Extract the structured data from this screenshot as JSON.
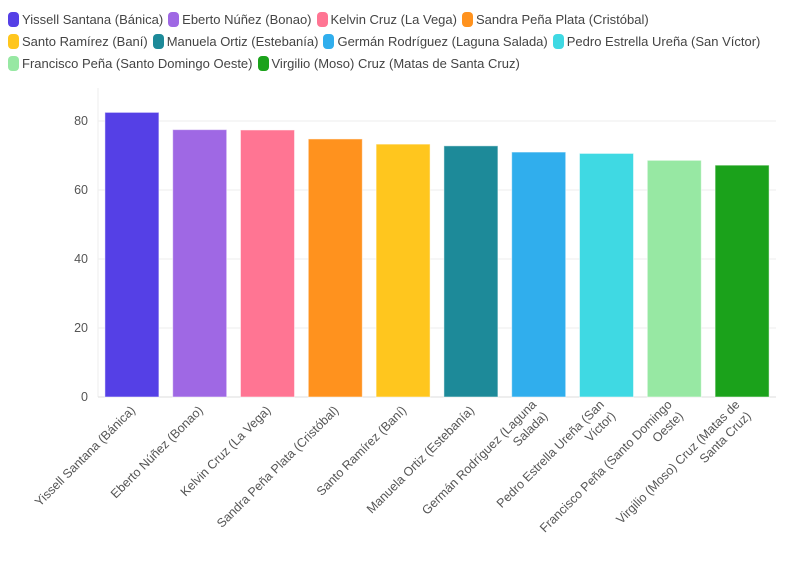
{
  "chart_data": {
    "type": "bar",
    "categories": [
      "Yissell Santana (Bánica)",
      "Eberto Núñez (Bonao)",
      "Kelvin Cruz (La Vega)",
      "Sandra Peña Plata (Cristóbal)",
      "Santo Ramírez (Baní)",
      "Manuela Ortiz (Estebanía)",
      "Germán Rodríguez (Laguna Salada)",
      "Pedro Estrella Ureña (San Víctor)",
      "Francisco Peña (Santo Domingo Oeste)",
      "Virgilio (Moso) Cruz (Matas de Santa Cruz)"
    ],
    "values": [
      82.5,
      77.5,
      77.4,
      74.8,
      73.3,
      72.8,
      71.0,
      70.6,
      68.6,
      67.2
    ],
    "colors": [
      "#5540e6",
      "#9f68e4",
      "#ff7593",
      "#ff921e",
      "#ffc61e",
      "#1d8a99",
      "#30aeed",
      "#3fd9e3",
      "#97e8a3",
      "#1ba21b"
    ],
    "title": "",
    "xlabel": "",
    "ylabel": "",
    "ylim": [
      0,
      88
    ],
    "yticks": [
      0,
      20,
      40,
      60,
      80
    ],
    "grid": true,
    "legend_position": "top-left"
  }
}
